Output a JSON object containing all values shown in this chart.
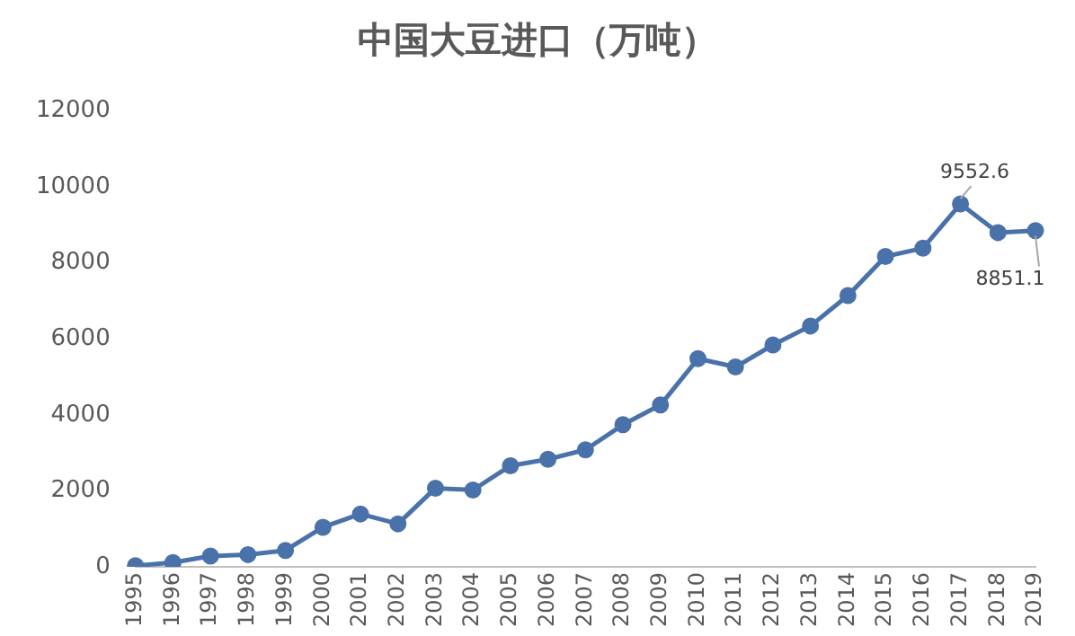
{
  "chart_data": {
    "type": "line",
    "title": "中国大豆进口（万吨）",
    "categories": [
      "1995",
      "1996",
      "1997",
      "1998",
      "1999",
      "2000",
      "2001",
      "2002",
      "2003",
      "2004",
      "2005",
      "2006",
      "2007",
      "2008",
      "2009",
      "2010",
      "2011",
      "2012",
      "2013",
      "2014",
      "2015",
      "2016",
      "2017",
      "2018",
      "2019"
    ],
    "series": [
      {
        "color": "#4a72aa",
        "values": [
          30,
          110,
          280,
          320,
          430,
          1040,
          1390,
          1130,
          2070,
          2020,
          2660,
          2830,
          3080,
          3740,
          4260,
          5480,
          5260,
          5840,
          6340,
          7140,
          8170,
          8390,
          9552.6,
          8800,
          8851.1
        ],
        "value_labels": [
          null,
          null,
          null,
          null,
          null,
          null,
          null,
          null,
          null,
          null,
          null,
          null,
          null,
          null,
          null,
          null,
          null,
          null,
          null,
          null,
          null,
          null,
          "9552.6",
          null,
          "8851.1"
        ]
      }
    ],
    "ylim": [
      0,
      12000
    ],
    "yticks": [
      0,
      2000,
      4000,
      6000,
      8000,
      10000,
      12000
    ],
    "grid": false,
    "legend": false,
    "marker": "circle",
    "line_style": "solid"
  }
}
